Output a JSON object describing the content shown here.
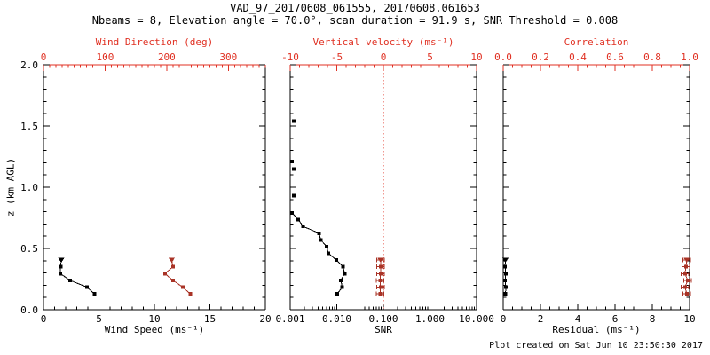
{
  "header": {
    "title": "VAD_97_20170608_061555, 20170608.061653",
    "subtitle": "Nbeams = 8, Elevation angle = 70.0°, scan duration = 91.9 s, SNR Threshold = 0.008"
  },
  "footer": {
    "created": "Plot created on Sat Jun 10 23:50:30 2017"
  },
  "colors": {
    "axis_red": "#e03123",
    "data_red": "#a93326",
    "black": "#000000",
    "background": "#ffffff"
  },
  "y_axis": {
    "label": "z (km AGL)",
    "lim": [
      0,
      2
    ],
    "major": [
      0,
      0.5,
      1,
      1.5,
      2
    ],
    "labels": [
      "0.0",
      "0.5",
      "1.0",
      "1.5",
      "2.0"
    ],
    "minor_step": 0.1
  },
  "chart_data": [
    {
      "id": "wind",
      "type": "line",
      "bottom_axis": {
        "label": "Wind Speed (ms⁻¹)",
        "scale": "linear",
        "lim": [
          0,
          20
        ],
        "major": [
          0,
          5,
          10,
          15,
          20
        ],
        "labels": [
          "0",
          "5",
          "10",
          "15",
          "20"
        ],
        "minor_step": 1,
        "color": "black"
      },
      "top_axis": {
        "label": "Wind Direction (deg)",
        "scale": "linear",
        "lim": [
          0,
          360
        ],
        "major": [
          0,
          100,
          200,
          300
        ],
        "labels": [
          "0",
          "100",
          "200",
          "300"
        ],
        "minor_step": 10,
        "color": "red"
      },
      "series": [
        {
          "name": "wind-speed",
          "axis": "bottom",
          "color": "black",
          "line": true,
          "marker": "square",
          "top_marker": "triangle-down",
          "points": [
            [
              0.13,
              4.6
            ],
            [
              0.185,
              3.9
            ],
            [
              0.24,
              2.4
            ],
            [
              0.295,
              1.5
            ],
            [
              0.35,
              1.55
            ],
            [
              0.405,
              1.6
            ]
          ]
        },
        {
          "name": "wind-direction",
          "axis": "top",
          "color": "red",
          "line": true,
          "marker": "square",
          "top_marker": "triangle-down",
          "points": [
            [
              0.13,
              238
            ],
            [
              0.185,
              226
            ],
            [
              0.24,
              210
            ],
            [
              0.295,
              197
            ],
            [
              0.35,
              210
            ],
            [
              0.405,
              208
            ]
          ]
        }
      ]
    },
    {
      "id": "snr",
      "type": "line",
      "bottom_axis": {
        "label": "SNR",
        "scale": "log",
        "lim": [
          0.001,
          10
        ],
        "major": [
          0.001,
          0.01,
          0.1,
          1,
          10
        ],
        "labels": [
          "0.001",
          "0.010",
          "0.100",
          "1.000",
          "10.000"
        ],
        "color": "black"
      },
      "top_axis": {
        "label": "Vertical velocity (ms⁻¹)",
        "scale": "linear",
        "lim": [
          -10,
          10
        ],
        "major": [
          -10,
          -5,
          0,
          5,
          10
        ],
        "labels": [
          "-10",
          "-5",
          "0",
          "5",
          "10"
        ],
        "minor_step": 1,
        "color": "red"
      },
      "ref_line": {
        "axis": "top",
        "value": 0,
        "style": "dotted",
        "color": "red"
      },
      "series": [
        {
          "name": "snr-isolated",
          "axis": "bottom",
          "color": "black",
          "line": false,
          "marker": "square",
          "points": [
            [
              0.93,
              0.0012
            ],
            [
              1.15,
              0.0012
            ],
            [
              1.21,
              0.0011
            ],
            [
              1.54,
              0.0012
            ]
          ]
        },
        {
          "name": "snr-profile",
          "axis": "bottom",
          "color": "black",
          "line": true,
          "marker": "square",
          "points": [
            [
              0.13,
              0.0102
            ],
            [
              0.185,
              0.0131
            ],
            [
              0.24,
              0.0122
            ],
            [
              0.295,
              0.0147
            ],
            [
              0.35,
              0.0137
            ],
            [
              0.405,
              0.0098
            ],
            [
              0.46,
              0.0066
            ],
            [
              0.515,
              0.0061
            ],
            [
              0.57,
              0.0045
            ],
            [
              0.625,
              0.0042
            ],
            [
              0.68,
              0.0019
            ],
            [
              0.735,
              0.0015
            ],
            [
              0.79,
              0.0011
            ]
          ]
        },
        {
          "name": "vertical-velocity",
          "axis": "top",
          "color": "red",
          "line": true,
          "marker": "square",
          "top_marker": "triangle-down",
          "xerr": 0.4,
          "points": [
            [
              0.13,
              -0.35
            ],
            [
              0.185,
              -0.3
            ],
            [
              0.24,
              -0.35
            ],
            [
              0.295,
              -0.3
            ],
            [
              0.35,
              -0.3
            ],
            [
              0.405,
              -0.3
            ]
          ]
        }
      ]
    },
    {
      "id": "residual",
      "type": "line",
      "bottom_axis": {
        "label": "Residual (ms⁻¹)",
        "scale": "linear",
        "lim": [
          0,
          10
        ],
        "major": [
          0,
          2,
          4,
          6,
          8,
          10
        ],
        "labels": [
          "0",
          "2",
          "4",
          "6",
          "8",
          "10"
        ],
        "minor_step": 0.5,
        "color": "black"
      },
      "top_axis": {
        "label": "Correlation",
        "scale": "linear",
        "lim": [
          0,
          1
        ],
        "major": [
          0,
          0.2,
          0.4,
          0.6,
          0.8,
          1.0
        ],
        "labels": [
          "0.0",
          "0.2",
          "0.4",
          "0.6",
          "0.8",
          "1.0"
        ],
        "minor_step": 0.05,
        "color": "red"
      },
      "series": [
        {
          "name": "residual",
          "axis": "bottom",
          "color": "black",
          "line": true,
          "marker": "square",
          "top_marker": "triangle-down",
          "points": [
            [
              0.13,
              0.12
            ],
            [
              0.185,
              0.15
            ],
            [
              0.24,
              0.1
            ],
            [
              0.295,
              0.14
            ],
            [
              0.35,
              0.1
            ],
            [
              0.405,
              0.12
            ]
          ]
        },
        {
          "name": "correlation",
          "axis": "top",
          "color": "red",
          "line": true,
          "marker": "square",
          "top_marker": "triangle-down",
          "xerr": 0.02,
          "points": [
            [
              0.13,
              0.985
            ],
            [
              0.185,
              0.975
            ],
            [
              0.24,
              0.99
            ],
            [
              0.295,
              0.975
            ],
            [
              0.35,
              0.98
            ],
            [
              0.405,
              0.985
            ]
          ]
        }
      ]
    }
  ]
}
